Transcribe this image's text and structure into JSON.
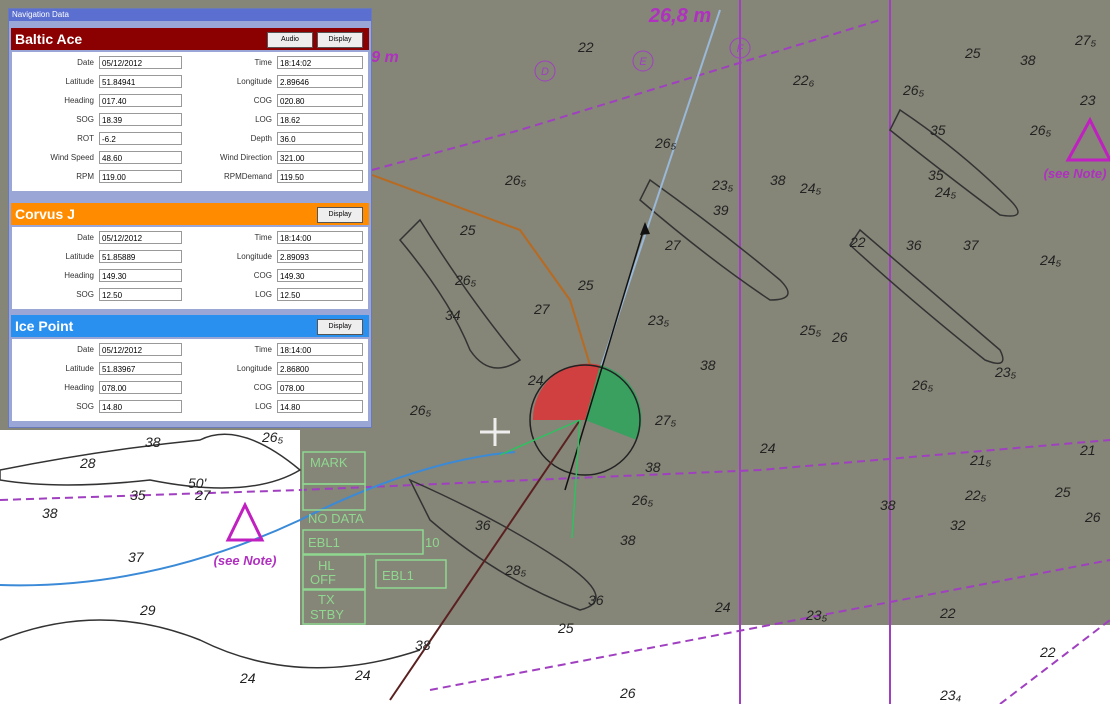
{
  "window": {
    "title": "Navigation Data"
  },
  "vessels": [
    {
      "name": "Baltic Ace",
      "buttons": [
        "Audio",
        "Display"
      ],
      "fields": [
        [
          "Date",
          "05/12/2012",
          "Time",
          "18:14:02"
        ],
        [
          "Latitude",
          "51.84941",
          "Longitude",
          "2.89646"
        ],
        [
          "Heading",
          "017.40",
          "COG",
          "020.80"
        ],
        [
          "SOG",
          "18.39",
          "LOG",
          "18.62"
        ],
        [
          "ROT",
          "-6.2",
          "Depth",
          "36.0"
        ],
        [
          "Wind Speed",
          "48.60",
          "Wind Direction",
          "321.00"
        ],
        [
          "RPM",
          "119.00",
          "RPMDemand",
          "119.50"
        ]
      ]
    },
    {
      "name": "Corvus J",
      "buttons": [
        "Display"
      ],
      "fields": [
        [
          "Date",
          "05/12/2012",
          "Time",
          "18:14:00"
        ],
        [
          "Latitude",
          "51.85889",
          "Longitude",
          "2.89093"
        ],
        [
          "Heading",
          "149.30",
          "COG",
          "149.30"
        ],
        [
          "SOG",
          "12.50",
          "LOG",
          "12.50"
        ]
      ]
    },
    {
      "name": "Ice Point",
      "buttons": [
        "Display"
      ],
      "fields": [
        [
          "Date",
          "05/12/2012",
          "Time",
          "18:14:00"
        ],
        [
          "Latitude",
          "51.83967",
          "Longitude",
          "2.86800"
        ],
        [
          "Heading",
          "078.00",
          "COG",
          "078.00"
        ],
        [
          "SOG",
          "14.80",
          "LOG",
          "14.80"
        ]
      ]
    }
  ],
  "map": {
    "notes": [
      "26,8 m",
      "9 m",
      "(see Note)",
      "(see Note)"
    ],
    "buoys": [
      "D",
      "E",
      "F"
    ],
    "depths": [
      "22",
      "26₅",
      "23₅",
      "38",
      "39",
      "27",
      "24₅",
      "22₆",
      "26₅",
      "25",
      "38",
      "27₅",
      "23",
      "35",
      "26₅",
      "35",
      "24₅",
      "22",
      "36",
      "37",
      "24₅",
      "25₅",
      "26",
      "23₅",
      "26₅",
      "24",
      "21₅",
      "22₅",
      "21",
      "25",
      "26",
      "32",
      "38",
      "26₅",
      "25",
      "26₅",
      "34",
      "27",
      "25",
      "23₅",
      "38",
      "24",
      "26₅",
      "27₅",
      "38",
      "26₅",
      "36",
      "38",
      "28₅",
      "36",
      "24",
      "23₅",
      "22",
      "25",
      "38",
      "24",
      "24",
      "26",
      "22",
      "23₄",
      "29",
      "37",
      "38",
      "35",
      "50'",
      "27",
      "28",
      "38",
      "26₅"
    ],
    "radar": [
      "MARK",
      "NO DATA",
      "EBL1",
      "10",
      "HL",
      "OFF",
      "TX",
      "STBY",
      "EBL1"
    ]
  }
}
